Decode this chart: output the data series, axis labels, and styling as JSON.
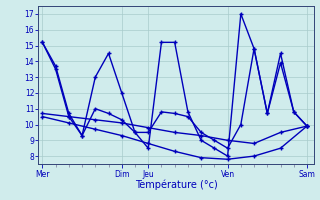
{
  "xlabel": "Température (°c)",
  "ylim": [
    7.5,
    17.5
  ],
  "yticks": [
    8,
    9,
    10,
    11,
    12,
    13,
    14,
    15,
    16,
    17
  ],
  "background_color": "#d0ecec",
  "grid_color": "#a8cccc",
  "line_color": "#0000bb",
  "day_labels": [
    "Mer",
    "Dim",
    "Jeu",
    "Ven",
    "Sam"
  ],
  "day_positions": [
    0,
    6,
    8,
    14,
    20
  ],
  "xlim": [
    -0.3,
    20.5
  ],
  "s1_x": [
    0,
    1,
    2,
    3,
    4,
    5,
    6,
    7,
    8,
    9,
    10,
    11,
    12,
    13,
    14,
    15,
    16,
    17,
    18,
    19,
    20
  ],
  "s1": [
    15.2,
    13.7,
    10.7,
    9.3,
    13.0,
    14.5,
    12.0,
    9.5,
    8.5,
    15.2,
    15.2,
    10.8,
    9.0,
    8.5,
    8.0,
    17.0,
    14.8,
    10.7,
    14.5,
    10.8,
    9.9
  ],
  "s2_x": [
    0,
    1,
    2,
    3,
    4,
    5,
    6,
    7,
    8,
    9,
    10,
    11,
    12,
    13,
    14,
    15,
    16,
    17,
    18,
    19,
    20
  ],
  "s2": [
    15.2,
    13.5,
    10.5,
    9.3,
    11.0,
    10.7,
    10.3,
    9.5,
    9.5,
    10.8,
    10.7,
    10.5,
    9.5,
    9.0,
    8.5,
    10.0,
    14.8,
    10.7,
    13.9,
    10.8,
    9.9
  ],
  "s3_x": [
    0,
    2,
    4,
    6,
    8,
    10,
    12,
    14,
    16,
    18,
    20
  ],
  "s3": [
    10.7,
    10.5,
    10.3,
    10.1,
    9.8,
    9.5,
    9.3,
    9.0,
    8.8,
    9.5,
    9.9
  ],
  "s4_x": [
    0,
    2,
    4,
    6,
    8,
    10,
    12,
    14,
    16,
    18,
    20
  ],
  "s4": [
    10.5,
    10.1,
    9.7,
    9.3,
    8.8,
    8.3,
    7.9,
    7.8,
    8.0,
    8.5,
    9.9
  ]
}
